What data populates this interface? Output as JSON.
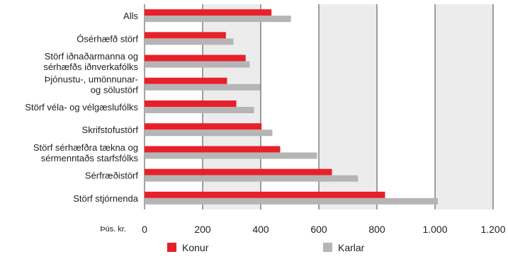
{
  "chart_data": {
    "type": "bar",
    "orientation": "horizontal",
    "categories": [
      [
        "Alls"
      ],
      [
        "Ósérhæfð störf"
      ],
      [
        "Störf iðnaðarmanna og",
        "sérhæfðs iðnverkafólks"
      ],
      [
        "Þjónustu-, umönnunar-",
        "og sölustörf"
      ],
      [
        "Störf véla- og vélgæslufólks"
      ],
      [
        "Skrifstofustörf"
      ],
      [
        "Störf sérhæfðra tækna og",
        "sérmenntaðs starfsfólks"
      ],
      [
        "Sérfræðistörf"
      ],
      [
        "Störf stjórnenda"
      ]
    ],
    "series": [
      {
        "name": "Konur",
        "color": "#e8202a",
        "values": [
          437,
          280,
          348,
          284,
          316,
          403,
          467,
          645,
          828
        ]
      },
      {
        "name": "Karlar",
        "color": "#b5b5b5",
        "values": [
          504,
          306,
          362,
          399,
          377,
          440,
          594,
          735,
          1010
        ]
      }
    ],
    "xlim": [
      0,
      1200
    ],
    "x_ticks": [
      {
        "value": 0,
        "label": "0"
      },
      {
        "value": 200,
        "label": "200"
      },
      {
        "value": 400,
        "label": "400"
      },
      {
        "value": 600,
        "label": "600"
      },
      {
        "value": 800,
        "label": "800"
      },
      {
        "value": 1000,
        "label": "1.000"
      },
      {
        "value": 1200,
        "label": "1.200"
      }
    ],
    "unit_label": "Þús. kr.",
    "legend_position": "bottom",
    "background_bands": true
  }
}
